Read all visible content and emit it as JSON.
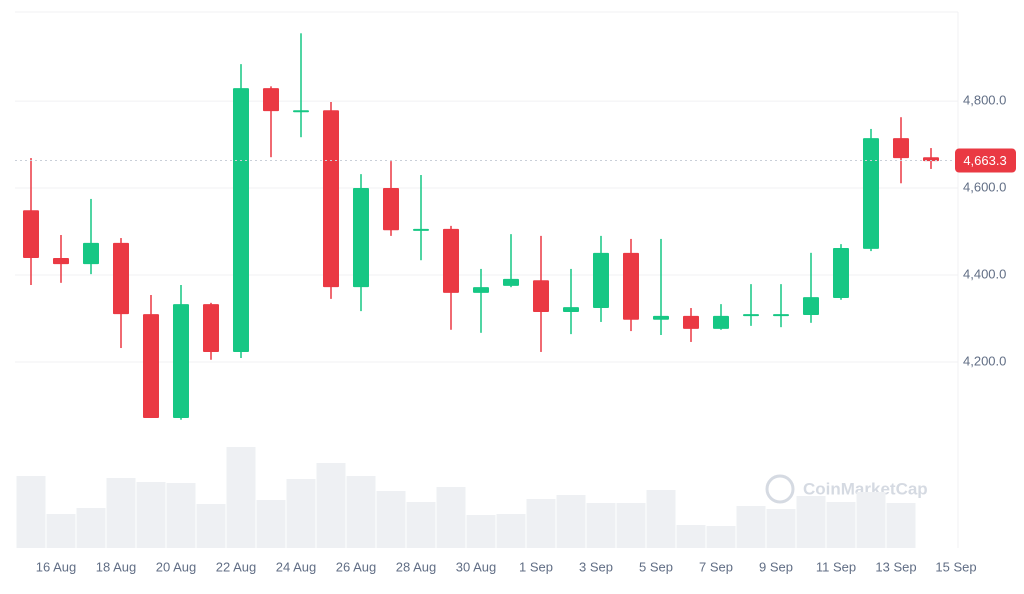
{
  "chart_data": {
    "type": "candlestick",
    "categories": [
      null,
      "16 Aug",
      null,
      "18 Aug",
      null,
      "20 Aug",
      null,
      "22 Aug",
      null,
      "24 Aug",
      null,
      "26 Aug",
      null,
      "28 Aug",
      null,
      "30 Aug",
      null,
      "1 Sep",
      null,
      "3 Sep",
      null,
      "5 Sep",
      null,
      "7 Sep",
      null,
      "9 Sep",
      null,
      "11 Sep",
      null,
      "13 Sep",
      null,
      "15 Sep"
    ],
    "open": [
      4549,
      4439,
      4425,
      4474,
      4310,
      4071,
      4333,
      4223,
      4830,
      4777,
      4779,
      4372,
      4600,
      4503,
      4506,
      4359,
      4375,
      4388,
      4315,
      4324,
      4451,
      4297,
      4306,
      4276,
      4306,
      4308,
      4308,
      4347,
      4460,
      4715,
      4671,
      null
    ],
    "high": [
      4669,
      4492,
      4575,
      4485,
      4354,
      4377,
      4336,
      4885,
      4834,
      4956,
      4798,
      4632,
      4662,
      4630,
      4513,
      4414,
      4494,
      4490,
      4414,
      4490,
      4483,
      4483,
      4324,
      4333,
      4379,
      4379,
      4451,
      4471,
      4736,
      4763,
      4692,
      null
    ],
    "low": [
      4377,
      4382,
      4402,
      4232,
      4071,
      4067,
      4205,
      4209,
      4671,
      4717,
      4345,
      4317,
      4490,
      4434,
      4274,
      4267,
      4372,
      4223,
      4264,
      4292,
      4271,
      4262,
      4246,
      4274,
      4283,
      4280,
      4290,
      4343,
      4455,
      4611,
      4644,
      null
    ],
    "close": [
      4439,
      4425,
      4474,
      4310,
      4071,
      4333,
      4223,
      4830,
      4777,
      4779,
      4372,
      4600,
      4503,
      4506,
      4359,
      4372,
      4391,
      4315,
      4326,
      4451,
      4297,
      4306,
      4276,
      4306,
      4310,
      4310,
      4349,
      4462,
      4715,
      4669,
      4662,
      null
    ],
    "volume": [
      72,
      34,
      40,
      70,
      66,
      65,
      44,
      101,
      48,
      69,
      85,
      72,
      57,
      46,
      61,
      33,
      34,
      49,
      53,
      45,
      45,
      58,
      23,
      22,
      42,
      39,
      52,
      46,
      56,
      45,
      null,
      null
    ],
    "volume_ylim": [
      0,
      120
    ],
    "up_color": "#16c784",
    "down_color": "#ea3943",
    "volume_color": "#eef0f3",
    "ylim": [
      3772,
      5005
    ],
    "yticks": [
      {
        "value": 4200,
        "label": "4,200.0"
      },
      {
        "value": 4400,
        "label": "4,400.0"
      },
      {
        "value": 4600,
        "label": "4,600.0"
      },
      {
        "value": 4800,
        "label": "4,800.0"
      }
    ],
    "grid": true,
    "current_price": {
      "value": 4663.3,
      "label": "4,663.3"
    },
    "watermark": "CoinMarketCap"
  }
}
